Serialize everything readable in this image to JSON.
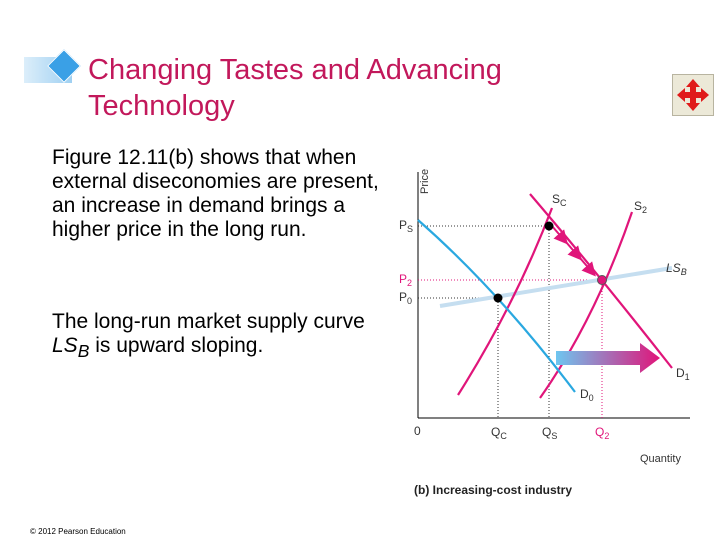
{
  "slide": {
    "title": "Changing Tastes and Advancing Technology",
    "paragraph1": "Figure 12.11(b) shows that when external diseconomies are present, an increase in demand brings a higher price in the long run.",
    "paragraph2_prefix": "The long-run market supply curve ",
    "paragraph2_ls": "LS",
    "paragraph2_sub": "B",
    "paragraph2_suffix": " is upward sloping.",
    "copyright": "© 2012 Pearson Education",
    "nav_icon": "move-arrows-icon"
  },
  "chart_data": {
    "type": "line",
    "title": "(b) Increasing-cost industry",
    "xlabel": "Quantity",
    "ylabel": "Price",
    "origin_label": "0",
    "x_ticks": [
      "Q",
      "Q",
      "Q"
    ],
    "x_tick_subs": [
      "C",
      "S",
      "2"
    ],
    "y_ticks": [
      "P",
      "P",
      "P"
    ],
    "y_tick_subs": [
      "S",
      "2",
      "0"
    ],
    "curves": [
      {
        "label": "S",
        "sub": "C"
      },
      {
        "label": "S",
        "sub": "2"
      },
      {
        "label": "LS",
        "sub": "B"
      },
      {
        "label": "D",
        "sub": "1"
      },
      {
        "label": "D",
        "sub": "0"
      }
    ],
    "colors": {
      "supply": "#e0157a",
      "demand_initial": "#2aa8e0",
      "demand_new": "#e0157a",
      "long_run_supply": "#c5def0",
      "highlight": "#e0157a",
      "shift_arrow": "#e0157a"
    }
  }
}
